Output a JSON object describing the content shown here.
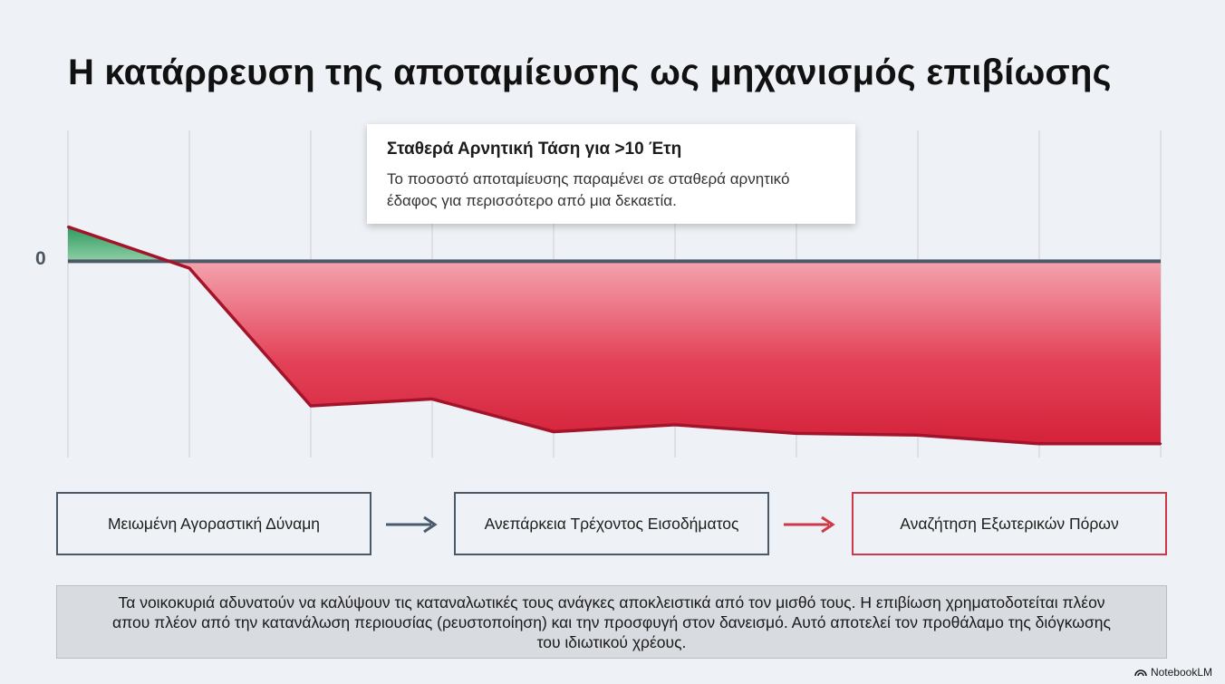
{
  "title": "Η κατάρρευση της αποταμίευσης ως μηχανισμός επιβίωσης",
  "callout": {
    "title": "Σταθερά Αρνητική Τάση για >10 Έτη",
    "text": "Το ποσοστό αποταμίευσης παραμένει σε σταθερά αρνητικό έδαφος για περισσότερο από μια δεκαετία."
  },
  "chart_data": {
    "type": "area",
    "zero_label": "0",
    "x": [
      0,
      1,
      2,
      3,
      4,
      5,
      6,
      7,
      8,
      9
    ],
    "y": [
      1,
      -0.2,
      -4.2,
      -4.0,
      -4.95,
      -4.75,
      -5.0,
      -5.05,
      -5.3,
      -5.3
    ],
    "ylim": [
      -5.7,
      3.8
    ],
    "grid": "vertical",
    "colors": {
      "positive": "#3aa56a",
      "negative": "#d8273c",
      "line": "#a3142a",
      "zero": "#4d5966"
    }
  },
  "flow": {
    "step1": "Μειωμένη Αγοραστική Δύναμη",
    "step2": "Ανεπάρκεια Τρέχοντος Εισοδήματος",
    "step3": "Αναζήτηση Εξωτερικών Πόρων",
    "arrow1_color": "#4a5a6a",
    "arrow2_color": "#cf3848"
  },
  "note": "Τα νοικοκυριά αδυνατούν να καλύψουν τις καταναλωτικές τους ανάγκες αποκλειστικά από τον μισθό τους. Η επιβίωση χρηματοδοτείται πλέον απου πλέον από την κατανάλωση περιουσίας (ρευστοποίηση) και την προσφυγή στον δανεισμό. Αυτό αποτελεί τον προθάλαμο της διόγκωσης του ιδιωτικού χρέους.",
  "brand": "NotebookLM"
}
